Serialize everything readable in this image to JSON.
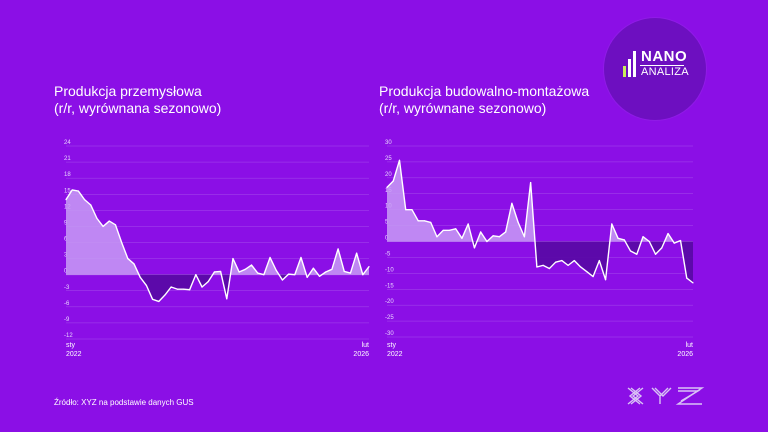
{
  "source": "Źródło: XYZ na podstawie danych GUS",
  "logo": {
    "line1": "NANO",
    "line2": "ANALIZA",
    "bar_colors": [
      "#c9f05a",
      "#ffffff",
      "#ffffff"
    ]
  },
  "brand": {
    "text": "XYZ"
  },
  "colors": {
    "background": "#8b0fe6",
    "line": "#ffffff",
    "positive_fill": "#c89cf4",
    "negative_fill": "#5a0aa6",
    "grid": "#b97cf0"
  },
  "chart_data": [
    {
      "type": "area",
      "title": "Produkcja przemysłowa",
      "subtitle": "(r/r, wyrównana sezonowo)",
      "x_start": {
        "month": "sty",
        "year": "2022"
      },
      "x_end": {
        "month": "lut",
        "year": "2026"
      },
      "y_ticks": [
        24,
        21,
        18,
        15,
        12,
        9,
        6,
        3,
        0,
        -3,
        -6,
        -9,
        -12
      ],
      "ylim": [
        -12,
        24
      ],
      "grid": true,
      "values": [
        14.0,
        15.8,
        15.6,
        14.0,
        13.0,
        10.5,
        9.0,
        10.0,
        9.3,
        6.0,
        3.0,
        2.0,
        -0.5,
        -2.0,
        -4.6,
        -5.0,
        -3.8,
        -2.3,
        -2.7,
        -2.7,
        -2.8,
        0.0,
        -2.3,
        -1.3,
        0.5,
        0.6,
        -4.5,
        3.0,
        0.5,
        1.0,
        1.8,
        0.3,
        0.0,
        3.2,
        0.8,
        -1.0,
        0.1,
        0.0,
        3.2,
        -0.5,
        1.2,
        -0.3,
        0.5,
        1.0,
        4.8,
        0.6,
        0.3,
        4.0,
        0.0,
        1.5
      ]
    },
    {
      "type": "area",
      "title": "Produkcja budowalno-montażowa",
      "subtitle": "(r/r, wyrównane sezonowo)",
      "x_start": {
        "month": "sty",
        "year": "2022"
      },
      "x_end": {
        "month": "lut",
        "year": "2026"
      },
      "y_ticks": [
        30,
        25,
        20,
        15,
        10,
        5,
        0,
        -5,
        -10,
        -15,
        -20,
        -25,
        -30
      ],
      "ylim": [
        -30,
        30
      ],
      "grid": true,
      "values": [
        17.0,
        19.0,
        25.5,
        10.0,
        10.0,
        6.5,
        6.5,
        6.0,
        1.5,
        3.5,
        3.5,
        4.0,
        1.0,
        5.5,
        -2.0,
        3.0,
        0.0,
        1.8,
        1.5,
        3.0,
        12.0,
        6.0,
        1.5,
        18.5,
        -8.0,
        -7.5,
        -8.5,
        -6.5,
        -6.0,
        -7.5,
        -6.0,
        -8.0,
        -9.5,
        -11.0,
        -6.0,
        -12.0,
        5.5,
        1.0,
        0.5,
        -3.0,
        -4.0,
        1.5,
        0.0,
        -4.0,
        -2.0,
        2.5,
        -0.5,
        0.3,
        -11.5,
        -13.0
      ]
    }
  ]
}
